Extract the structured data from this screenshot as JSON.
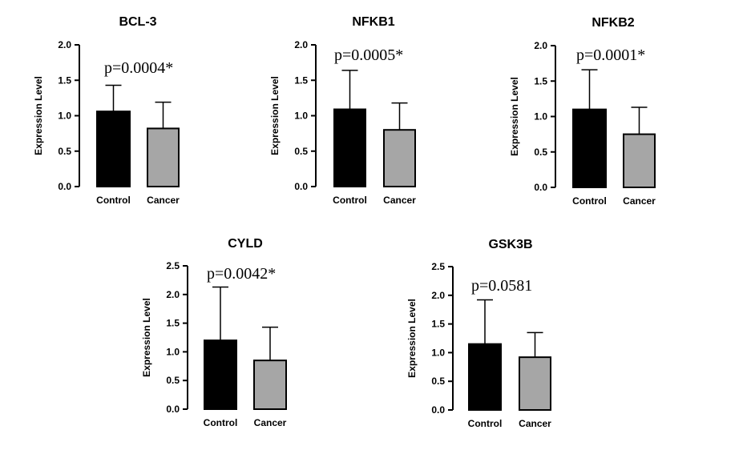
{
  "chart_data": [
    {
      "type": "bar",
      "title": "BCL-3",
      "ylabel": "Expression Level",
      "categories": [
        "Control",
        "Cancer"
      ],
      "values": [
        1.06,
        0.82
      ],
      "errors": [
        0.37,
        0.37
      ],
      "colors": [
        "#000000",
        "#a6a6a6"
      ],
      "ylim": [
        0,
        2.0
      ],
      "yticks": [
        "0.0",
        "0.5",
        "1.0",
        "1.5",
        "2.0"
      ],
      "annotation": "p=0.0004*"
    },
    {
      "type": "bar",
      "title": "NFKB1",
      "ylabel": "Expression Level",
      "categories": [
        "Control",
        "Cancer"
      ],
      "values": [
        1.09,
        0.8
      ],
      "errors": [
        0.55,
        0.38
      ],
      "colors": [
        "#000000",
        "#a6a6a6"
      ],
      "ylim": [
        0,
        2.0
      ],
      "yticks": [
        "0.0",
        "0.5",
        "1.0",
        "1.5",
        "2.0"
      ],
      "annotation": "p=0.0005*"
    },
    {
      "type": "bar",
      "title": "NFKB2",
      "ylabel": "Expression Level",
      "categories": [
        "Control",
        "Cancer"
      ],
      "values": [
        1.1,
        0.75
      ],
      "errors": [
        0.56,
        0.38
      ],
      "colors": [
        "#000000",
        "#a6a6a6"
      ],
      "ylim": [
        0,
        2.0
      ],
      "yticks": [
        "0.0",
        "0.5",
        "1.0",
        "1.5",
        "2.0"
      ],
      "annotation": "p=0.0001*"
    },
    {
      "type": "bar",
      "title": "CYLD",
      "ylabel": "Expression Level",
      "categories": [
        "Control",
        "Cancer"
      ],
      "values": [
        1.2,
        0.85
      ],
      "errors": [
        0.93,
        0.58
      ],
      "colors": [
        "#000000",
        "#a6a6a6"
      ],
      "ylim": [
        0,
        2.5
      ],
      "yticks": [
        "0.0",
        "0.5",
        "1.0",
        "1.5",
        "2.0",
        "2.5"
      ],
      "annotation": "p=0.0042*"
    },
    {
      "type": "bar",
      "title": "GSK3B",
      "ylabel": "Expression Level",
      "categories": [
        "Control",
        "Cancer"
      ],
      "values": [
        1.15,
        0.92
      ],
      "errors": [
        0.77,
        0.43
      ],
      "colors": [
        "#000000",
        "#a6a6a6"
      ],
      "ylim": [
        0,
        2.5
      ],
      "yticks": [
        "0.0",
        "0.5",
        "1.0",
        "1.5",
        "2.0",
        "2.5"
      ],
      "annotation": "p=0.0581"
    }
  ]
}
